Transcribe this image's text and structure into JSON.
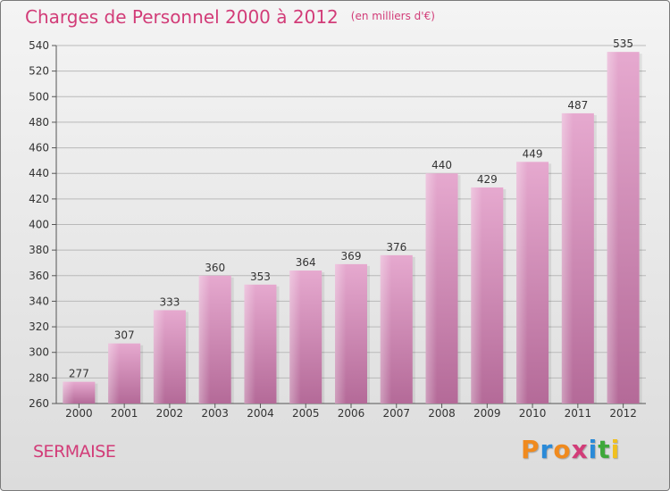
{
  "title": "Charges de Personnel 2000 à 2012",
  "subtitle": "(en milliers d'€)",
  "city": "SERMAISE",
  "logo": {
    "text": "Proxiti",
    "letters": [
      "P",
      "r",
      "o",
      "x",
      "i",
      "t",
      "i"
    ],
    "colors": [
      "#f08a1e",
      "#2a8ad8",
      "#f08a1e",
      "#d23c78",
      "#2a8ad8",
      "#3fa83a",
      "#f0c020"
    ]
  },
  "colors": {
    "accent": "#d23c78",
    "bar_light": "#e6a9cf",
    "bar_dark": "#b46a98"
  },
  "chart_data": {
    "type": "bar",
    "categories": [
      "2000",
      "2001",
      "2002",
      "2003",
      "2004",
      "2005",
      "2006",
      "2007",
      "2008",
      "2009",
      "2010",
      "2011",
      "2012"
    ],
    "values": [
      277,
      307,
      333,
      360,
      353,
      364,
      369,
      376,
      440,
      429,
      449,
      487,
      535
    ],
    "title": "Charges de Personnel 2000 à 2012",
    "xlabel": "",
    "ylabel": "",
    "ylim": [
      260,
      540
    ],
    "yticks": [
      260,
      280,
      300,
      320,
      340,
      360,
      380,
      400,
      420,
      440,
      460,
      480,
      500,
      520,
      540
    ],
    "grid": true,
    "legend": "none"
  }
}
